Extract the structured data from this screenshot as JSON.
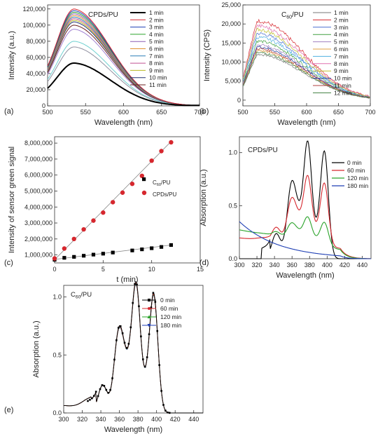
{
  "chart_data": [
    {
      "panel": "(a)",
      "type": "line",
      "title": "CPDs/PU",
      "xlabel": "Wavelength (nm)",
      "ylabel": "Intensity (a.u.)",
      "xlim": [
        500,
        700
      ],
      "ylim": [
        0,
        125000
      ],
      "xticks": [
        500,
        550,
        600,
        650,
        700
      ],
      "yticks": [
        0,
        20000,
        40000,
        60000,
        80000,
        100000,
        120000
      ],
      "ytick_labels": [
        "0",
        "20,000",
        "40,000",
        "60,000",
        "80,000",
        "100,000",
        "120,000"
      ],
      "legend_position": "top-right",
      "series": [
        {
          "name": "1 min",
          "color": "#000000",
          "peak": 53000,
          "peak_x": 535,
          "width": 2
        },
        {
          "name": "2 min",
          "color": "#d6272e",
          "peak": 120000,
          "peak_x": 535,
          "width": 1
        },
        {
          "name": "3 min",
          "color": "#1f3fb4",
          "peak": 118000,
          "peak_x": 535,
          "width": 1
        },
        {
          "name": "4 min",
          "color": "#2aa32a",
          "peak": 116000,
          "peak_x": 535,
          "width": 1
        },
        {
          "name": "5 min",
          "color": "#8c5bb3",
          "peak": 114000,
          "peak_x": 535,
          "width": 1
        },
        {
          "name": "6 min",
          "color": "#e09030",
          "peak": 112000,
          "peak_x": 535,
          "width": 1
        },
        {
          "name": "7 min",
          "color": "#2a7fb5",
          "peak": 110000,
          "peak_x": 535,
          "width": 1
        },
        {
          "name": "8 min",
          "color": "#c05090",
          "peak": 108000,
          "peak_x": 535,
          "width": 1
        },
        {
          "name": "9 min",
          "color": "#b8b820",
          "peak": 106000,
          "peak_x": 535,
          "width": 1
        },
        {
          "name": "10 min",
          "color": "#203070",
          "peak": 104000,
          "peak_x": 535,
          "width": 1
        },
        {
          "name": "11 min",
          "color": "#6a2020",
          "peak": 100000,
          "peak_x": 535,
          "width": 1
        },
        {
          "name": "",
          "color": "#6fd0d0",
          "peak": 80000,
          "peak_x": 535,
          "width": 1
        },
        {
          "name": "",
          "color": "#a080d0",
          "peak": 95000,
          "peak_x": 535,
          "width": 1
        },
        {
          "name": "",
          "color": "#9090a0",
          "peak": 73000,
          "peak_x": 535,
          "width": 1
        }
      ]
    },
    {
      "panel": "(b)",
      "type": "line",
      "title": "C60/PU",
      "title_main": "C",
      "title_sub": "60",
      "title_rest": "/PU",
      "xlabel": "Wavelength (nm)",
      "ylabel": "Intensity (CPS)",
      "xlim": [
        500,
        700
      ],
      "ylim": [
        -1500,
        25000
      ],
      "xticks": [
        500,
        550,
        600,
        650,
        700
      ],
      "yticks": [
        0,
        5000,
        10000,
        15000,
        20000,
        25000
      ],
      "ytick_labels": [
        "0",
        "5,000",
        "10,000",
        "15,000",
        "20,000",
        "25,000"
      ],
      "legend_position": "top-right",
      "series": [
        {
          "name": "1 min",
          "color": "#777777",
          "peak": 12000
        },
        {
          "name": "2 min",
          "color": "#d6272e",
          "peak": 20800
        },
        {
          "name": "3 min",
          "color": "#4a6fd0",
          "peak": 17500
        },
        {
          "name": "4 min",
          "color": "#40a040",
          "peak": 15500
        },
        {
          "name": "5 min",
          "color": "#a080c0",
          "peak": 14500
        },
        {
          "name": "6 min",
          "color": "#e0a040",
          "peak": 13000
        },
        {
          "name": "7 min",
          "color": "#50b0e0",
          "peak": 16500
        },
        {
          "name": "8 min",
          "color": "#e070b0",
          "peak": 19500
        },
        {
          "name": "9 min",
          "color": "#c0c030",
          "peak": 18500
        },
        {
          "name": "10 min",
          "color": "#2040a0",
          "peak": 14000
        },
        {
          "name": "11 min",
          "color": "#b04040",
          "peak": 13500
        },
        {
          "name": "12 min",
          "color": "#408040",
          "peak": 12500
        }
      ]
    },
    {
      "panel": "(c)",
      "type": "scatter",
      "xlabel": "t (min)",
      "ylabel": "Intensity of sensor green signal",
      "xlim": [
        0,
        15
      ],
      "ylim": [
        500000,
        8400000
      ],
      "xticks": [
        0,
        5,
        10,
        15
      ],
      "yticks": [
        1000000,
        2000000,
        3000000,
        4000000,
        5000000,
        6000000,
        7000000,
        8000000
      ],
      "ytick_labels": [
        "1,000,000",
        "2,000,000",
        "3,000,000",
        "4,000,000",
        "5,000,000",
        "6,000,000",
        "7,000,000",
        "8,000,000"
      ],
      "legend_position": "right",
      "series": [
        {
          "name": "C60/PU",
          "name_main": "C",
          "name_sub": "60",
          "name_rest": "/PU",
          "marker": "square",
          "color": "#000000",
          "x": [
            0,
            1,
            2,
            3,
            4,
            5,
            6,
            8,
            9,
            10,
            11,
            12
          ],
          "y": [
            700000,
            820000,
            880000,
            950000,
            1020000,
            1080000,
            1150000,
            1280000,
            1350000,
            1420000,
            1500000,
            1620000
          ],
          "fit": {
            "x0": 0,
            "y0": 720000,
            "x1": 12,
            "y1": 1620000
          }
        },
        {
          "name": "CPDs/PU",
          "marker": "circle",
          "color": "#d6272e",
          "x": [
            0,
            1,
            2,
            3,
            4,
            5,
            6,
            7,
            8,
            9,
            10,
            11,
            12
          ],
          "y": [
            780000,
            1400000,
            2000000,
            2600000,
            3150000,
            3650000,
            4300000,
            4900000,
            5450000,
            5950000,
            6900000,
            7500000,
            8050000
          ],
          "fit": {
            "x0": 0,
            "y0": 700000,
            "x1": 12,
            "y1": 8100000
          }
        }
      ]
    },
    {
      "panel": "(d)",
      "type": "line",
      "title": "CPDs/PU",
      "xlabel": "Wavelength (nm)",
      "ylabel": "Absorption (a.u.)",
      "xlim": [
        300,
        450
      ],
      "ylim": [
        0,
        1.15
      ],
      "xticks": [
        300,
        320,
        340,
        360,
        380,
        400,
        420,
        440
      ],
      "yticks": [
        0,
        0.5,
        1.0
      ],
      "ytick_labels": [
        "0.0",
        "0.5",
        "1.0"
      ],
      "legend_position": "top-right",
      "series": [
        {
          "name": "0 min",
          "color": "#000000",
          "scale": 1.0,
          "baseline": "dpa0"
        },
        {
          "name": "60 min",
          "color": "#d6272e",
          "scale": 0.58,
          "baseline": "b60"
        },
        {
          "name": "120 min",
          "color": "#2aa32a",
          "scale": 0.22,
          "baseline": "b120"
        },
        {
          "name": "180 min",
          "color": "#1f3fb4",
          "scale": 0.0,
          "baseline": "b180"
        }
      ]
    },
    {
      "panel": "(e)",
      "type": "line",
      "title": "C60/PU",
      "title_main": "C",
      "title_sub": "60",
      "title_rest": "/PU",
      "xlabel": "Wavelength (nm)",
      "ylabel": "Absorption (a.u.)",
      "xlim": [
        300,
        450
      ],
      "ylim": [
        0,
        1.1
      ],
      "xticks": [
        300,
        320,
        340,
        360,
        380,
        400,
        420,
        440
      ],
      "yticks": [
        0,
        0.5,
        1.0
      ],
      "ytick_labels": [
        "0.0",
        "0.5",
        "1.0"
      ],
      "legend_position": "top-right",
      "series": [
        {
          "name": "0 min",
          "color": "#000000",
          "marker": "square",
          "scale": 1.0
        },
        {
          "name": "60 min",
          "color": "#d6272e",
          "marker": "circle",
          "scale": 0.99
        },
        {
          "name": "120 min",
          "color": "#2aa32a",
          "marker": "triangle",
          "scale": 0.985
        },
        {
          "name": "180 min",
          "color": "#1f3fb4",
          "marker": "triangle-down",
          "scale": 0.98
        }
      ]
    }
  ]
}
